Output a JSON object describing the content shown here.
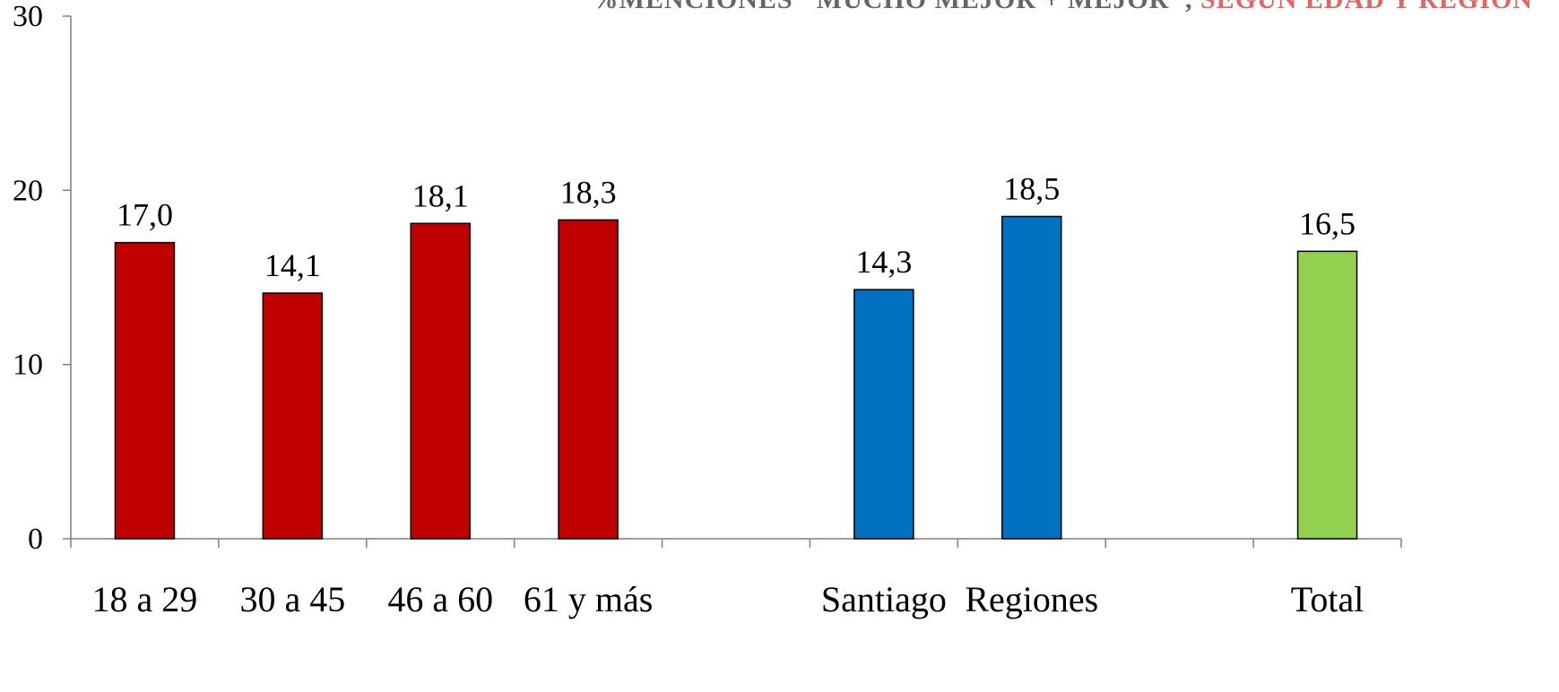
{
  "chart_data": {
    "type": "bar",
    "title": "%MENCIONES \"MUCHO MEJOR + MEJOR\",",
    "title_accent": "SEGÚN EDAD Y REGIÓN",
    "xlabel": "",
    "ylabel": "",
    "ylim": [
      0,
      30
    ],
    "yticks": [
      "0",
      "10",
      "20",
      "30"
    ],
    "grid": false,
    "legend": "none",
    "slots": [
      "18 a 29",
      "30 a 45",
      "46 a 60",
      "61 y más",
      "",
      "Santiago",
      "Regiones",
      "",
      "Total"
    ],
    "bars": [
      {
        "category": "18 a 29",
        "value": 17.0,
        "label": "17,0",
        "color": "#c00000"
      },
      {
        "category": "30 a 45",
        "value": 14.1,
        "label": "14,1",
        "color": "#c00000"
      },
      {
        "category": "46 a 60",
        "value": 18.1,
        "label": "18,1",
        "color": "#c00000"
      },
      {
        "category": "61 y más",
        "value": 18.3,
        "label": "18,3",
        "color": "#c00000"
      },
      {
        "category": "Santiago",
        "value": 14.3,
        "label": "14,3",
        "color": "#0070c0"
      },
      {
        "category": "Regiones",
        "value": 18.5,
        "label": "18,5",
        "color": "#0070c0"
      },
      {
        "category": "Total",
        "value": 16.5,
        "label": "16,5",
        "color": "#92d050"
      }
    ]
  }
}
